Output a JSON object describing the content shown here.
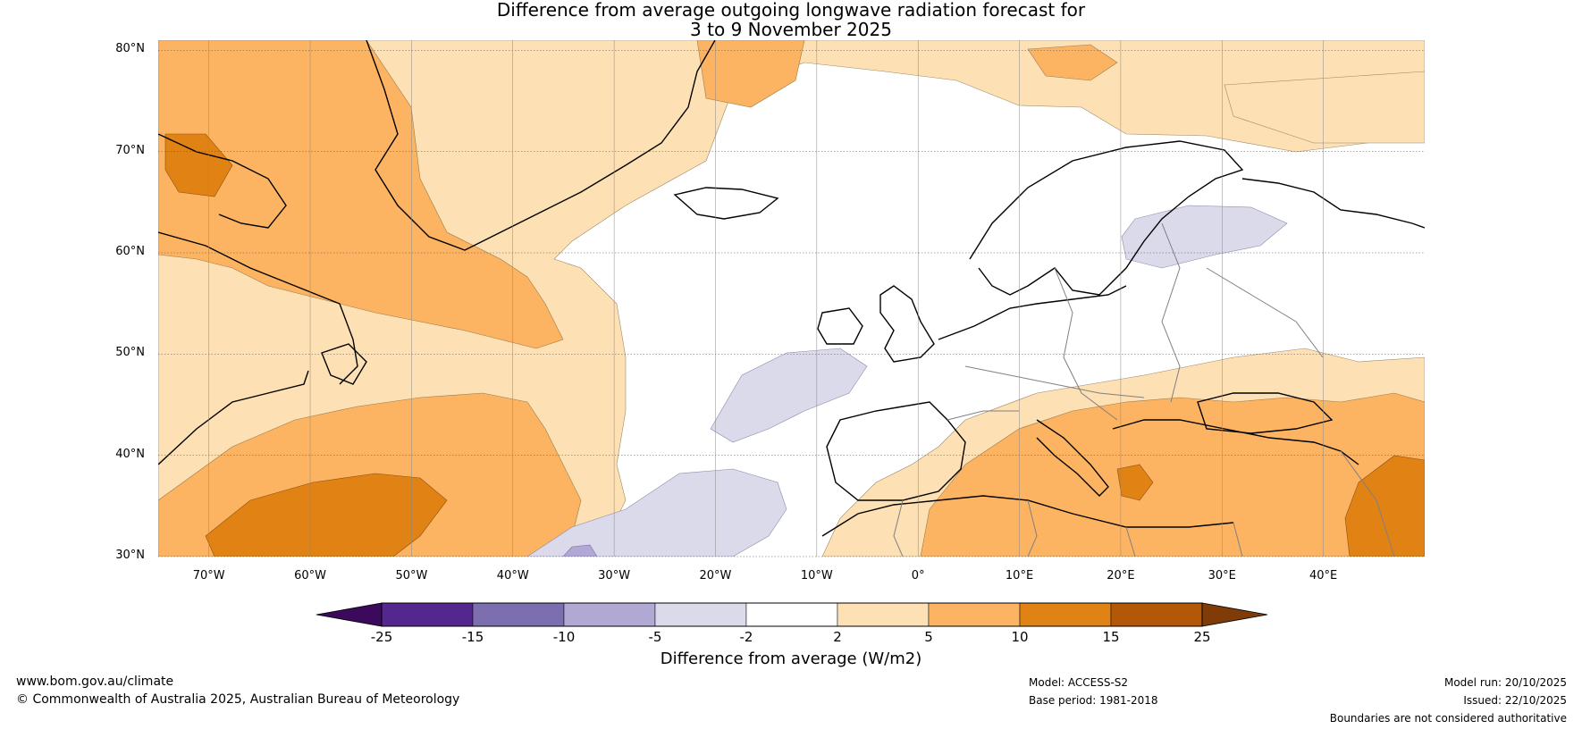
{
  "title": {
    "line1": "Difference from average outgoing longwave radiation forecast for",
    "line2": "3 to 9 November 2025"
  },
  "map": {
    "lat_labels": [
      "80°N",
      "70°N",
      "60°N",
      "50°N",
      "40°N",
      "30°N"
    ],
    "lon_labels": [
      "70°W",
      "60°W",
      "50°W",
      "40°W",
      "30°W",
      "20°W",
      "10°W",
      "0°",
      "10°E",
      "20°E",
      "30°E",
      "40°E"
    ],
    "extent": {
      "lon_min": -75,
      "lon_max": 50,
      "lat_min": 30,
      "lat_max": 81
    }
  },
  "colorbar": {
    "ticks": [
      "-25",
      "-15",
      "-10",
      "-5",
      "-2",
      "2",
      "5",
      "10",
      "15",
      "25"
    ],
    "colors": [
      "#3b0a5c",
      "#54278f",
      "#7d6eb0",
      "#b1a9d3",
      "#dadaeb",
      "#ffffff",
      "#fde0b4",
      "#fdb462",
      "#e08214",
      "#b35806",
      "#7f3b08"
    ],
    "label": "Difference from average (W/m2)"
  },
  "colors": {
    "pos_light": "#fde0b4",
    "pos_mid": "#fdb462",
    "pos_dark": "#e08214",
    "neg_light": "#dadaeb",
    "neg_mid": "#b1a9d3",
    "coast": "#000000",
    "border": "#808080"
  },
  "footer": {
    "website": "www.bom.gov.au/climate",
    "copyright": "© Commonwealth of Australia 2025, Australian Bureau of Meteorology",
    "model": "Model: ACCESS-S2",
    "base_period": "Base period: 1981-2018",
    "model_run": "Model run: 20/10/2025",
    "issued": "Issued: 22/10/2025",
    "disclaimer": "Boundaries are not considered authoritative"
  }
}
